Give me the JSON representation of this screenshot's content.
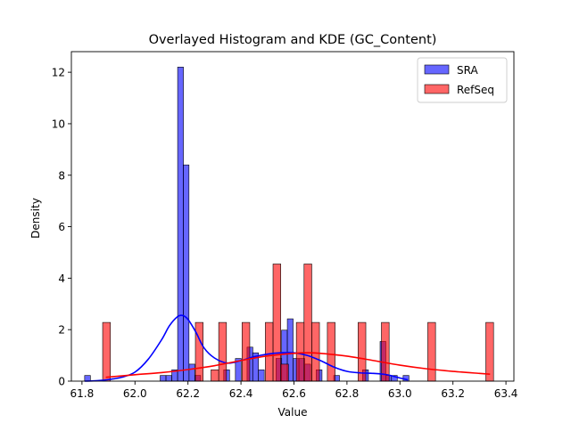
{
  "chart_data": {
    "type": "bar",
    "title": "Overlayed Histogram and KDE (GC_Content)",
    "xlabel": "Value",
    "ylabel": "Density",
    "xlim": [
      61.76,
      63.43
    ],
    "ylim": [
      0,
      12.8
    ],
    "xticks": [
      "61.8",
      "62.0",
      "62.2",
      "62.4",
      "62.6",
      "62.8",
      "63.0",
      "63.2",
      "63.4"
    ],
    "yticks": [
      "0",
      "2",
      "4",
      "6",
      "8",
      "10",
      "12"
    ],
    "legend_position": "top-right",
    "series": [
      {
        "name": "SRA",
        "color": "#0000ff",
        "bin_width": 0.02184,
        "bins": [
          {
            "x": 61.81,
            "y": 0.22
          },
          {
            "x": 62.095,
            "y": 0.22
          },
          {
            "x": 62.117,
            "y": 0.22
          },
          {
            "x": 62.139,
            "y": 0.44
          },
          {
            "x": 62.161,
            "y": 12.2
          },
          {
            "x": 62.182,
            "y": 8.4
          },
          {
            "x": 62.204,
            "y": 0.66
          },
          {
            "x": 62.226,
            "y": 0.22
          },
          {
            "x": 62.335,
            "y": 0.44
          },
          {
            "x": 62.379,
            "y": 0.88
          },
          {
            "x": 62.423,
            "y": 1.32
          },
          {
            "x": 62.444,
            "y": 1.1
          },
          {
            "x": 62.466,
            "y": 0.44
          },
          {
            "x": 62.532,
            "y": 0.88
          },
          {
            "x": 62.553,
            "y": 1.98
          },
          {
            "x": 62.575,
            "y": 2.42
          },
          {
            "x": 62.597,
            "y": 0.88
          },
          {
            "x": 62.619,
            "y": 0.88
          },
          {
            "x": 62.641,
            "y": 0.66
          },
          {
            "x": 62.684,
            "y": 0.44
          },
          {
            "x": 62.75,
            "y": 0.22
          },
          {
            "x": 62.859,
            "y": 0.44
          },
          {
            "x": 62.925,
            "y": 1.54
          },
          {
            "x": 62.946,
            "y": 0.22
          },
          {
            "x": 62.968,
            "y": 0.22
          },
          {
            "x": 63.012,
            "y": 0.22
          }
        ],
        "kde": {
          "x": [
            61.81,
            61.86,
            61.9,
            61.95,
            62.0,
            62.05,
            62.1,
            62.13,
            62.16,
            62.18,
            62.2,
            62.23,
            62.26,
            62.3,
            62.35,
            62.4,
            62.45,
            62.5,
            62.55,
            62.6,
            62.65,
            62.7,
            62.75,
            62.8,
            62.85,
            62.9,
            62.95,
            63.0,
            63.03
          ],
          "y": [
            0.0,
            0.02,
            0.06,
            0.15,
            0.35,
            0.85,
            1.6,
            2.15,
            2.5,
            2.55,
            2.4,
            1.9,
            1.3,
            0.9,
            0.7,
            0.8,
            0.95,
            1.05,
            1.1,
            1.1,
            1.0,
            0.8,
            0.55,
            0.38,
            0.32,
            0.3,
            0.25,
            0.12,
            0.05
          ]
        }
      },
      {
        "name": "RefSeq",
        "color": "#ff0000",
        "bin_width": 0.0292,
        "bins": [
          {
            "x": 61.878,
            "y": 2.28
          },
          {
            "x": 62.228,
            "y": 2.28
          },
          {
            "x": 62.287,
            "y": 0.44
          },
          {
            "x": 62.316,
            "y": 2.28
          },
          {
            "x": 62.404,
            "y": 2.28
          },
          {
            "x": 62.492,
            "y": 2.28
          },
          {
            "x": 62.521,
            "y": 4.55
          },
          {
            "x": 62.55,
            "y": 0.66
          },
          {
            "x": 62.609,
            "y": 2.28
          },
          {
            "x": 62.638,
            "y": 4.55
          },
          {
            "x": 62.667,
            "y": 2.28
          },
          {
            "x": 62.726,
            "y": 2.28
          },
          {
            "x": 62.842,
            "y": 2.28
          },
          {
            "x": 62.93,
            "y": 2.28
          },
          {
            "x": 63.105,
            "y": 2.28
          },
          {
            "x": 63.324,
            "y": 2.28
          }
        ],
        "kde": {
          "x": [
            61.89,
            62.0,
            62.1,
            62.2,
            62.3,
            62.4,
            62.5,
            62.6,
            62.65,
            62.7,
            62.8,
            62.9,
            63.0,
            63.1,
            63.2,
            63.3,
            63.34
          ],
          "y": [
            0.15,
            0.25,
            0.33,
            0.45,
            0.6,
            0.8,
            0.98,
            1.08,
            1.1,
            1.08,
            0.97,
            0.8,
            0.62,
            0.48,
            0.38,
            0.3,
            0.27
          ]
        }
      }
    ]
  }
}
